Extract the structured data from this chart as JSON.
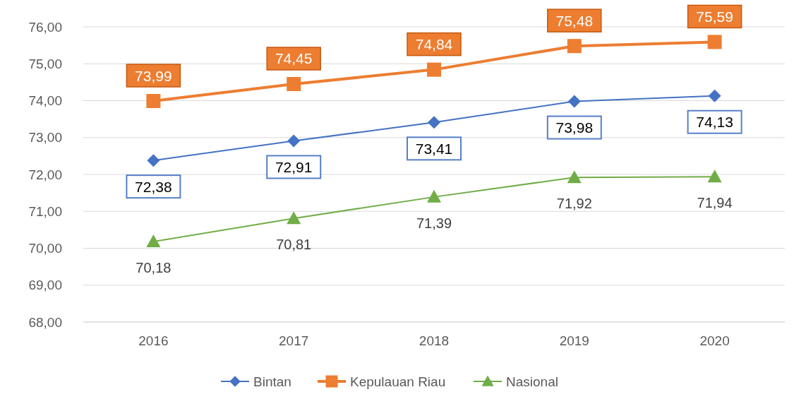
{
  "chart_data": {
    "type": "line",
    "categories": [
      "2016",
      "2017",
      "2018",
      "2019",
      "2020"
    ],
    "ylim": [
      68,
      76
    ],
    "yticks": [
      {
        "value": 68,
        "label": "68,00"
      },
      {
        "value": 69,
        "label": "69,00"
      },
      {
        "value": 70,
        "label": "70,00"
      },
      {
        "value": 71,
        "label": "71,00"
      },
      {
        "value": 72,
        "label": "72,00"
      },
      {
        "value": 73,
        "label": "73,00"
      },
      {
        "value": 74,
        "label": "74,00"
      },
      {
        "value": 75,
        "label": "75,00"
      },
      {
        "value": 76,
        "label": "76,00"
      }
    ],
    "grid": "y",
    "legend": "bottom",
    "series": [
      {
        "name": "Bintan",
        "color": "#4472c4",
        "marker": "diamond",
        "values": [
          72.38,
          72.91,
          73.41,
          73.98,
          74.13
        ],
        "value_labels": [
          "72,38",
          "72,91",
          "73,41",
          "73,98",
          "74,13"
        ]
      },
      {
        "name": "Kepulauan Riau",
        "color": "#ed7d31",
        "marker": "square",
        "values": [
          73.99,
          74.45,
          74.84,
          75.48,
          75.59
        ],
        "value_labels": [
          "73,99",
          "74,45",
          "74,84",
          "75,48",
          "75,59"
        ]
      },
      {
        "name": "Nasional",
        "color": "#70ad47",
        "marker": "triangle",
        "values": [
          70.18,
          70.81,
          71.39,
          71.92,
          71.94
        ],
        "value_labels": [
          "70,18",
          "70,81",
          "71,39",
          "71,92",
          "71,94"
        ]
      }
    ]
  }
}
